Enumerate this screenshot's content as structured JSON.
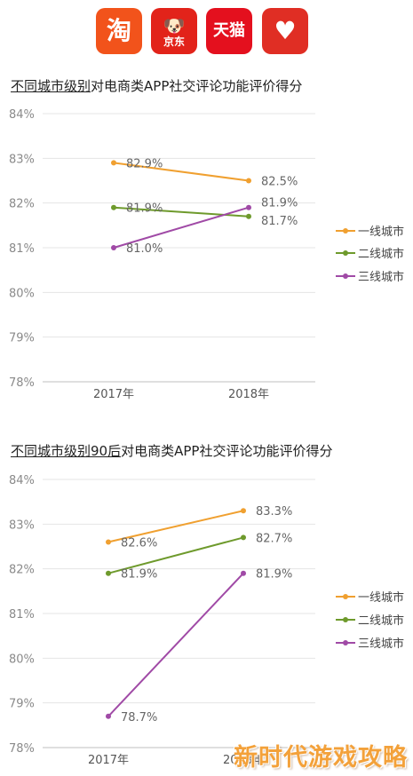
{
  "logos": [
    {
      "name": "taobao-logo",
      "text": "淘",
      "sub": "",
      "color": "#f2531b"
    },
    {
      "name": "jd-logo",
      "text": "🐶",
      "sub": "京东",
      "color": "#e2231a"
    },
    {
      "name": "tmall-logo",
      "text": "天猫",
      "sub": "",
      "color": "#e4101e"
    },
    {
      "name": "pinduoduo-logo",
      "text": "♥",
      "sub": "",
      "color": "#e02e24"
    }
  ],
  "chart_data": [
    {
      "type": "line",
      "title_underlined": "不同城市级别",
      "title_rest": "对电商类APP社交评论功能评价得分",
      "categories": [
        "2017年",
        "2018年"
      ],
      "ylim": [
        78,
        84
      ],
      "yticks": [
        "84%",
        "83%",
        "82%",
        "81%",
        "80%",
        "79%",
        "78%"
      ],
      "grid": true,
      "legend_position": "right",
      "series": [
        {
          "name": "一线城市",
          "color": "#f0a030",
          "values": [
            82.9,
            82.5
          ],
          "labels": [
            "82.9%",
            "82.5%"
          ]
        },
        {
          "name": "二线城市",
          "color": "#6e9a2c",
          "values": [
            81.9,
            81.7
          ],
          "labels": [
            "81.9%",
            "81.7%"
          ]
        },
        {
          "name": "三线城市",
          "color": "#a04aa6",
          "values": [
            81.0,
            81.9
          ],
          "labels": [
            "81.0%",
            "81.9%"
          ]
        }
      ]
    },
    {
      "type": "line",
      "title_underlined": "不同城市级别90后",
      "title_rest": "对电商类APP社交评论功能评价得分",
      "categories": [
        "2017年",
        "2018年"
      ],
      "ylim": [
        78,
        84
      ],
      "yticks": [
        "84%",
        "83%",
        "82%",
        "81%",
        "80%",
        "79%",
        "78%"
      ],
      "grid": true,
      "legend_position": "right",
      "series": [
        {
          "name": "一线城市",
          "color": "#f0a030",
          "values": [
            82.6,
            83.3
          ],
          "labels": [
            "82.6%",
            "83.3%"
          ]
        },
        {
          "name": "二线城市",
          "color": "#6e9a2c",
          "values": [
            81.9,
            82.7
          ],
          "labels": [
            "81.9%",
            "82.7%"
          ]
        },
        {
          "name": "三线城市",
          "color": "#a04aa6",
          "values": [
            78.7,
            81.9
          ],
          "labels": [
            "78.7%",
            "81.9%"
          ]
        }
      ]
    }
  ],
  "watermark": "新时代游戏攻略"
}
